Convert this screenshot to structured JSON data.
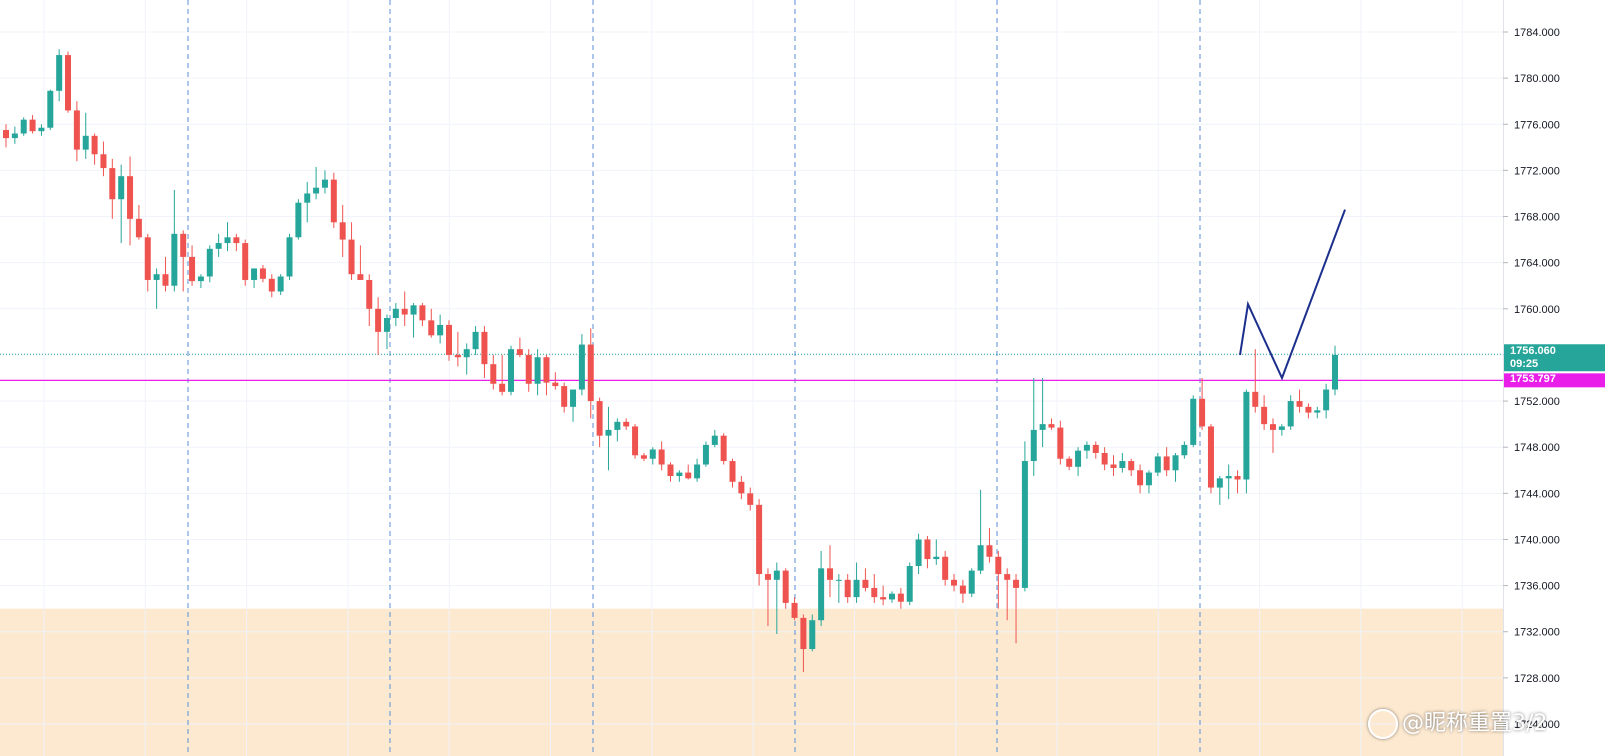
{
  "chart_data": {
    "type": "candlestick",
    "y_axis": {
      "ticks": [
        "1784.000",
        "1780.000",
        "1776.000",
        "1772.000",
        "1768.000",
        "1764.000",
        "1760.000",
        "1756.000",
        "1752.000",
        "1748.000",
        "1744.000",
        "1740.000",
        "1736.000",
        "1732.000",
        "1728.000",
        "1724.000"
      ],
      "range": [
        1723.5,
        1786.5
      ],
      "position": "right"
    },
    "grid": true,
    "candles": [
      [
        1775.5,
        1776.0,
        1774.0,
        1774.8
      ],
      [
        1774.8,
        1775.8,
        1774.3,
        1775.2
      ],
      [
        1775.2,
        1776.6,
        1775.0,
        1776.4
      ],
      [
        1776.4,
        1776.8,
        1775.2,
        1775.4
      ],
      [
        1775.4,
        1776.0,
        1775.0,
        1775.7
      ],
      [
        1775.7,
        1779.0,
        1775.5,
        1778.9
      ],
      [
        1778.9,
        1782.5,
        1778.0,
        1782.0
      ],
      [
        1782.0,
        1782.3,
        1777.0,
        1777.2
      ],
      [
        1777.2,
        1778.0,
        1772.8,
        1773.8
      ],
      [
        1773.8,
        1777.0,
        1773.0,
        1775.0
      ],
      [
        1775.0,
        1775.2,
        1772.5,
        1773.4
      ],
      [
        1773.4,
        1774.5,
        1771.5,
        1772.2
      ],
      [
        1772.2,
        1773.0,
        1767.8,
        1769.5
      ],
      [
        1769.5,
        1772.5,
        1765.7,
        1771.5
      ],
      [
        1771.5,
        1773.2,
        1765.5,
        1767.8
      ],
      [
        1767.8,
        1769.0,
        1766.0,
        1766.2
      ],
      [
        1766.2,
        1766.5,
        1761.5,
        1762.5
      ],
      [
        1762.5,
        1763.5,
        1760.0,
        1763.0
      ],
      [
        1763.0,
        1764.5,
        1761.5,
        1762.0
      ],
      [
        1762.0,
        1770.3,
        1761.5,
        1766.5
      ],
      [
        1766.5,
        1766.8,
        1761.5,
        1764.5
      ],
      [
        1764.5,
        1765.5,
        1762.0,
        1762.4
      ],
      [
        1762.4,
        1763.0,
        1761.8,
        1762.8
      ],
      [
        1762.8,
        1765.5,
        1762.3,
        1765.2
      ],
      [
        1765.2,
        1766.5,
        1764.5,
        1765.7
      ],
      [
        1765.7,
        1767.5,
        1765.0,
        1766.2
      ],
      [
        1766.2,
        1766.5,
        1765.0,
        1765.7
      ],
      [
        1765.7,
        1766.0,
        1762.0,
        1762.5
      ],
      [
        1762.5,
        1763.5,
        1761.8,
        1763.5
      ],
      [
        1763.5,
        1763.8,
        1762.3,
        1762.6
      ],
      [
        1762.6,
        1763.0,
        1761.0,
        1761.5
      ],
      [
        1761.5,
        1763.0,
        1761.2,
        1762.8
      ],
      [
        1762.8,
        1766.5,
        1762.5,
        1766.2
      ],
      [
        1766.2,
        1769.5,
        1766.0,
        1769.2
      ],
      [
        1769.2,
        1771.0,
        1767.5,
        1770.0
      ],
      [
        1770.0,
        1772.3,
        1769.5,
        1770.5
      ],
      [
        1770.5,
        1772.0,
        1770.0,
        1771.2
      ],
      [
        1771.2,
        1771.8,
        1767.0,
        1767.5
      ],
      [
        1767.5,
        1769.0,
        1764.5,
        1766.0
      ],
      [
        1766.0,
        1767.5,
        1762.5,
        1763.0
      ],
      [
        1763.0,
        1765.5,
        1762.5,
        1762.5
      ],
      [
        1762.5,
        1763.0,
        1758.5,
        1760.0
      ],
      [
        1760.0,
        1761.0,
        1756.0,
        1758.0
      ],
      [
        1758.0,
        1759.5,
        1756.5,
        1759.2
      ],
      [
        1759.2,
        1760.5,
        1758.5,
        1760.0
      ],
      [
        1760.0,
        1761.5,
        1758.5,
        1759.5
      ],
      [
        1759.5,
        1760.5,
        1757.5,
        1760.3
      ],
      [
        1760.3,
        1760.5,
        1758.5,
        1759.0
      ],
      [
        1759.0,
        1760.0,
        1757.5,
        1757.7
      ],
      [
        1757.7,
        1759.5,
        1757.0,
        1758.6
      ],
      [
        1758.6,
        1759.0,
        1755.5,
        1756.0
      ],
      [
        1756.0,
        1758.0,
        1755.0,
        1755.8
      ],
      [
        1755.8,
        1757.0,
        1754.3,
        1756.5
      ],
      [
        1756.5,
        1758.5,
        1756.0,
        1758.0
      ],
      [
        1758.0,
        1758.5,
        1754.0,
        1755.2
      ],
      [
        1755.2,
        1756.0,
        1753.0,
        1753.5
      ],
      [
        1753.5,
        1756.0,
        1752.5,
        1752.8
      ],
      [
        1752.8,
        1756.8,
        1752.5,
        1756.5
      ],
      [
        1756.5,
        1757.5,
        1755.8,
        1756.0
      ],
      [
        1756.0,
        1756.5,
        1752.8,
        1753.5
      ],
      [
        1753.5,
        1756.5,
        1752.5,
        1755.8
      ],
      [
        1755.8,
        1756.0,
        1752.5,
        1753.6
      ],
      [
        1753.6,
        1754.5,
        1753.0,
        1753.3
      ],
      [
        1753.3,
        1753.6,
        1751.0,
        1751.5
      ],
      [
        1751.5,
        1753.0,
        1750.2,
        1753.0
      ],
      [
        1753.0,
        1757.8,
        1752.5,
        1756.9
      ],
      [
        1756.9,
        1758.3,
        1750.5,
        1752.0
      ],
      [
        1752.0,
        1752.3,
        1748.0,
        1749.0
      ],
      [
        1749.0,
        1751.5,
        1746.0,
        1749.5
      ],
      [
        1749.5,
        1750.5,
        1748.5,
        1750.2
      ],
      [
        1750.2,
        1750.5,
        1749.5,
        1749.8
      ],
      [
        1749.8,
        1750.0,
        1747.0,
        1747.3
      ],
      [
        1747.3,
        1747.5,
        1746.8,
        1747.0
      ],
      [
        1747.0,
        1748.0,
        1746.5,
        1747.8
      ],
      [
        1747.8,
        1748.5,
        1746.0,
        1746.5
      ],
      [
        1746.5,
        1746.7,
        1745.0,
        1745.5
      ],
      [
        1745.5,
        1746.0,
        1745.0,
        1745.8
      ],
      [
        1745.8,
        1746.5,
        1745.2,
        1745.3
      ],
      [
        1745.3,
        1747.0,
        1745.0,
        1746.5
      ],
      [
        1746.5,
        1748.5,
        1746.3,
        1748.2
      ],
      [
        1748.2,
        1749.5,
        1748.0,
        1749.0
      ],
      [
        1749.0,
        1749.2,
        1746.5,
        1746.8
      ],
      [
        1746.8,
        1747.0,
        1744.5,
        1745.0
      ],
      [
        1745.0,
        1745.5,
        1743.5,
        1744.0
      ],
      [
        1744.0,
        1744.5,
        1742.5,
        1743.0
      ],
      [
        1743.0,
        1743.5,
        1736.0,
        1737.0
      ],
      [
        1737.0,
        1737.5,
        1732.5,
        1736.5
      ],
      [
        1736.5,
        1738.0,
        1731.8,
        1737.3
      ],
      [
        1737.3,
        1737.5,
        1734.0,
        1734.5
      ],
      [
        1734.5,
        1735.0,
        1733.0,
        1733.2
      ],
      [
        1733.2,
        1733.5,
        1728.5,
        1730.5
      ],
      [
        1730.5,
        1733.5,
        1730.3,
        1733.0
      ],
      [
        1733.0,
        1739.0,
        1732.5,
        1737.5
      ],
      [
        1737.5,
        1739.5,
        1735.0,
        1736.5
      ],
      [
        1736.5,
        1737.0,
        1734.5,
        1736.5
      ],
      [
        1736.5,
        1737.0,
        1734.5,
        1735.0
      ],
      [
        1735.0,
        1738.0,
        1734.5,
        1736.5
      ],
      [
        1736.5,
        1737.5,
        1735.5,
        1735.8
      ],
      [
        1735.8,
        1737.0,
        1734.5,
        1735.0
      ],
      [
        1735.0,
        1736.0,
        1734.3,
        1734.8
      ],
      [
        1734.8,
        1735.5,
        1734.5,
        1735.3
      ],
      [
        1735.3,
        1735.8,
        1734.0,
        1734.6
      ],
      [
        1734.6,
        1738.0,
        1734.3,
        1737.7
      ],
      [
        1737.7,
        1740.5,
        1737.0,
        1740.0
      ],
      [
        1740.0,
        1740.3,
        1737.5,
        1738.3
      ],
      [
        1738.3,
        1740.0,
        1737.8,
        1738.5
      ],
      [
        1738.5,
        1739.0,
        1736.0,
        1736.5
      ],
      [
        1736.5,
        1737.0,
        1735.5,
        1736.0
      ],
      [
        1736.0,
        1736.5,
        1734.5,
        1735.3
      ],
      [
        1735.3,
        1737.5,
        1735.0,
        1737.3
      ],
      [
        1737.3,
        1744.3,
        1737.0,
        1739.5
      ],
      [
        1739.5,
        1741.0,
        1738.0,
        1738.5
      ],
      [
        1738.5,
        1739.0,
        1734.0,
        1737.0
      ],
      [
        1737.0,
        1737.5,
        1733.0,
        1736.5
      ],
      [
        1736.5,
        1737.0,
        1731.0,
        1735.8
      ],
      [
        1735.8,
        1748.5,
        1735.5,
        1746.8
      ],
      [
        1746.8,
        1754.0,
        1745.5,
        1749.5
      ],
      [
        1749.5,
        1754.0,
        1748.0,
        1750.0
      ],
      [
        1750.0,
        1750.5,
        1749.5,
        1749.7
      ],
      [
        1749.7,
        1750.3,
        1746.5,
        1747.0
      ],
      [
        1747.0,
        1747.2,
        1746.0,
        1746.3
      ],
      [
        1746.3,
        1748.0,
        1745.5,
        1747.7
      ],
      [
        1747.7,
        1748.5,
        1747.0,
        1748.2
      ],
      [
        1748.2,
        1748.5,
        1747.0,
        1747.5
      ],
      [
        1747.5,
        1748.0,
        1746.0,
        1746.5
      ],
      [
        1746.5,
        1747.3,
        1745.5,
        1746.2
      ],
      [
        1746.2,
        1747.5,
        1745.8,
        1746.8
      ],
      [
        1746.8,
        1747.0,
        1745.5,
        1746.0
      ],
      [
        1746.0,
        1746.5,
        1744.0,
        1744.7
      ],
      [
        1744.7,
        1746.0,
        1744.0,
        1745.8
      ],
      [
        1745.8,
        1747.5,
        1745.5,
        1747.2
      ],
      [
        1747.2,
        1748.0,
        1745.5,
        1746.0
      ],
      [
        1746.0,
        1747.5,
        1745.0,
        1747.3
      ],
      [
        1747.3,
        1748.5,
        1747.0,
        1748.2
      ],
      [
        1748.2,
        1752.5,
        1748.0,
        1752.2
      ],
      [
        1752.2,
        1754.0,
        1749.5,
        1749.8
      ],
      [
        1749.8,
        1750.0,
        1744.0,
        1744.5
      ],
      [
        1744.5,
        1745.5,
        1743.0,
        1745.3
      ],
      [
        1745.3,
        1746.5,
        1743.5,
        1745.5
      ],
      [
        1745.5,
        1746.0,
        1744.0,
        1745.2
      ],
      [
        1745.2,
        1753.0,
        1744.0,
        1752.8
      ],
      [
        1752.8,
        1756.5,
        1751.0,
        1751.5
      ],
      [
        1751.5,
        1752.5,
        1749.5,
        1750.0
      ],
      [
        1750.0,
        1750.5,
        1747.5,
        1749.5
      ],
      [
        1749.5,
        1750.0,
        1749.0,
        1749.8
      ],
      [
        1749.8,
        1752.5,
        1749.5,
        1752.0
      ],
      [
        1752.0,
        1753.0,
        1751.0,
        1751.5
      ],
      [
        1751.5,
        1751.8,
        1750.5,
        1751.0
      ],
      [
        1751.0,
        1751.5,
        1750.5,
        1751.2
      ],
      [
        1751.2,
        1753.5,
        1750.5,
        1753.0
      ],
      [
        1753.0,
        1756.8,
        1752.5,
        1756.0
      ]
    ],
    "horizontal_lines": [
      {
        "value": 1753.797,
        "color": "#e91ee9",
        "label": "1753.797"
      },
      {
        "value": 1756.06,
        "color": "#26a69a",
        "style": "dotted",
        "label": "1756.060",
        "countdown": "09:25"
      }
    ],
    "support_zone": {
      "from": 1722.0,
      "to": 1734.0,
      "color": "#fde9d0"
    },
    "projection_path": [
      [
        0,
        1756.0
      ],
      [
        1,
        1760.4
      ],
      [
        2,
        1754.0
      ],
      [
        3,
        1768.6
      ]
    ],
    "colors": {
      "up": "#26a69a",
      "down": "#ef5350",
      "projection": "#1c2f8c",
      "session_divider": "#5b8ed6"
    }
  },
  "watermark": {
    "text": "@昵称重置3/2"
  }
}
